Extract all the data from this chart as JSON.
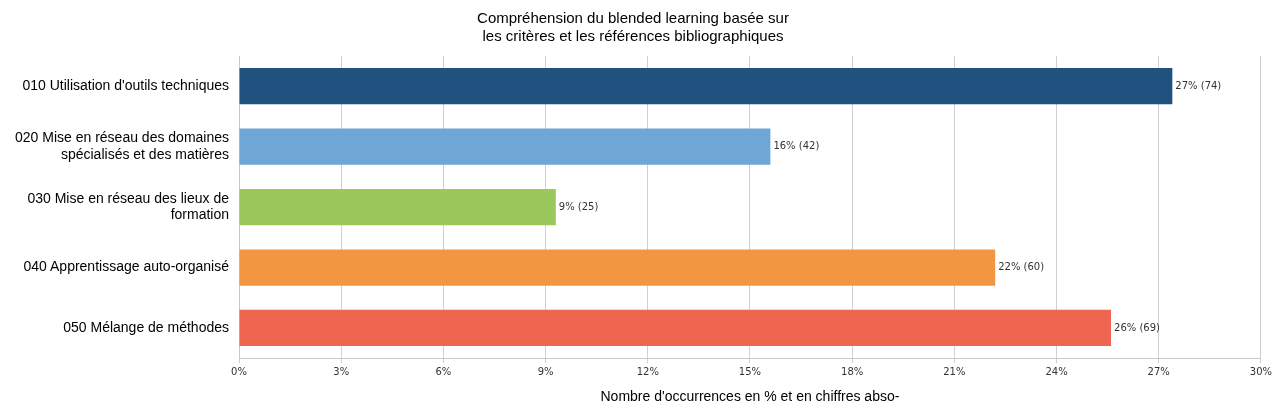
{
  "chart_data": {
    "type": "bar",
    "orientation": "horizontal",
    "title": "Compréhension du blended learning basée sur\nles critères et les références bibliographiques",
    "xlabel": "Nombre d'occurrences en % et en chiffres abso-",
    "categories": [
      "010 Utilisation d'outils techniques",
      "020 Mise en réseau des domaines\nspécialisés et des matières",
      "030 Mise en réseau des lieux de\nformation",
      "040 Apprentissage auto-organisé",
      "050 Mélange de méthodes"
    ],
    "values": [
      27.4,
      15.6,
      9.3,
      22.2,
      25.6
    ],
    "colors": [
      "#1f527f",
      "#6ea6d5",
      "#9bc85a",
      "#f39641",
      "#ee6650"
    ],
    "value_labels": [
      "27% (74)",
      "16% (42)",
      "9% (25)",
      "22% (60)",
      "26% (69)"
    ],
    "xlim": [
      0,
      30
    ],
    "xticks": [
      {
        "value": 0,
        "label": "0%"
      },
      {
        "value": 3,
        "label": "3%"
      },
      {
        "value": 6,
        "label": "6%"
      },
      {
        "value": 9,
        "label": "9%"
      },
      {
        "value": 12,
        "label": "12%"
      },
      {
        "value": 15,
        "label": "15%"
      },
      {
        "value": 18,
        "label": "18%"
      },
      {
        "value": 21,
        "label": "21%"
      },
      {
        "value": 24,
        "label": "24%"
      },
      {
        "value": 27,
        "label": "27%"
      },
      {
        "value": 30,
        "label": "30%"
      }
    ],
    "grid": "x",
    "legend": false
  }
}
